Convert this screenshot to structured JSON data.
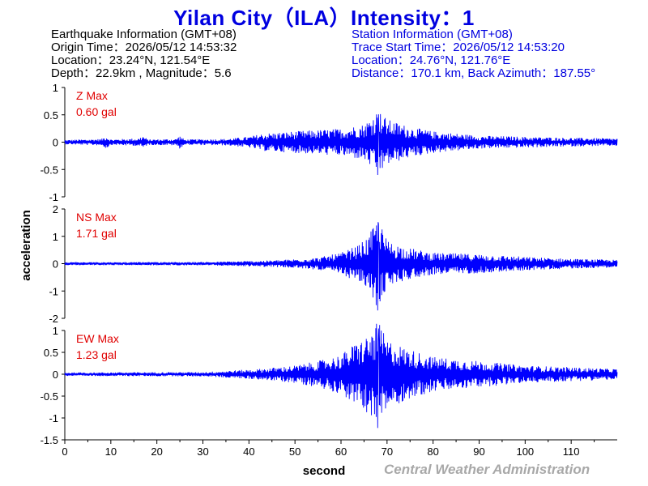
{
  "header": {
    "title": "Yilan City（ILA）Intensity：1"
  },
  "earthquake_info": {
    "heading": "Earthquake Information (GMT+08)",
    "origin_time": "Origin Time：2026/05/12 14:53:32",
    "location": "Location：23.24°N, 121.54°E",
    "depth_magnitude": "Depth：22.9km , Magnitude：5.6"
  },
  "station_info": {
    "heading": "Station Information (GMT+08)",
    "trace_start": "Trace Start Time：2026/05/12 14:53:20",
    "location": "Location：24.76°N, 121.76°E",
    "distance": "Distance：170.1 km, Back Azimuth：187.55°"
  },
  "credit": "Central Weather Administration",
  "colors": {
    "title": "#0000e0",
    "trace": "#0000ff",
    "panel_label": "#e00000",
    "axes": "#000000",
    "credit": "#a8a8a8"
  },
  "chart_data": {
    "type": "line",
    "xlabel": "second",
    "ylabel": "acceleration",
    "xlim": [
      0,
      120
    ],
    "xticks": [
      0,
      10,
      20,
      30,
      40,
      50,
      60,
      70,
      80,
      90,
      100,
      110
    ],
    "grid": false,
    "panels": [
      {
        "name": "Z Max",
        "max_label": "0.60 gal",
        "ylim": [
          -1,
          1
        ],
        "yticks": [
          -1,
          -0.5,
          0,
          0.5,
          1
        ],
        "envelope": [
          [
            0,
            0.04
          ],
          [
            8,
            0.06
          ],
          [
            9,
            0.12
          ],
          [
            10,
            0.05
          ],
          [
            16,
            0.07
          ],
          [
            17,
            0.12
          ],
          [
            18,
            0.05
          ],
          [
            24,
            0.06
          ],
          [
            25,
            0.12
          ],
          [
            26,
            0.05
          ],
          [
            35,
            0.06
          ],
          [
            40,
            0.1
          ],
          [
            43,
            0.16
          ],
          [
            50,
            0.2
          ],
          [
            60,
            0.25
          ],
          [
            65,
            0.33
          ],
          [
            67,
            0.5
          ],
          [
            68,
            0.6
          ],
          [
            70,
            0.42
          ],
          [
            75,
            0.28
          ],
          [
            80,
            0.2
          ],
          [
            90,
            0.12
          ],
          [
            100,
            0.1
          ],
          [
            110,
            0.08
          ],
          [
            120,
            0.07
          ]
        ]
      },
      {
        "name": "NS Max",
        "max_label": "1.71 gal",
        "ylim": [
          -2,
          2
        ],
        "yticks": [
          -2,
          -1,
          0,
          1,
          2
        ],
        "envelope": [
          [
            0,
            0.05
          ],
          [
            30,
            0.06
          ],
          [
            45,
            0.12
          ],
          [
            55,
            0.22
          ],
          [
            60,
            0.4
          ],
          [
            64,
            0.7
          ],
          [
            66,
            1.0
          ],
          [
            67,
            1.35
          ],
          [
            68,
            1.71
          ],
          [
            70,
            0.85
          ],
          [
            74,
            0.6
          ],
          [
            80,
            0.4
          ],
          [
            90,
            0.35
          ],
          [
            100,
            0.25
          ],
          [
            110,
            0.18
          ],
          [
            120,
            0.14
          ]
        ]
      },
      {
        "name": "EW Max",
        "max_label": "1.23 gal",
        "ylim": [
          -1.5,
          1
        ],
        "yticks": [
          -1.5,
          -1,
          -0.5,
          0,
          0.5,
          1
        ],
        "envelope": [
          [
            0,
            0.04
          ],
          [
            30,
            0.05
          ],
          [
            42,
            0.12
          ],
          [
            50,
            0.2
          ],
          [
            55,
            0.3
          ],
          [
            60,
            0.45
          ],
          [
            63,
            0.7
          ],
          [
            66,
            0.9
          ],
          [
            67.5,
            1.1
          ],
          [
            68,
            1.23
          ],
          [
            70,
            0.8
          ],
          [
            74,
            0.6
          ],
          [
            80,
            0.4
          ],
          [
            90,
            0.3
          ],
          [
            100,
            0.2
          ],
          [
            110,
            0.16
          ],
          [
            120,
            0.12
          ]
        ]
      }
    ]
  }
}
